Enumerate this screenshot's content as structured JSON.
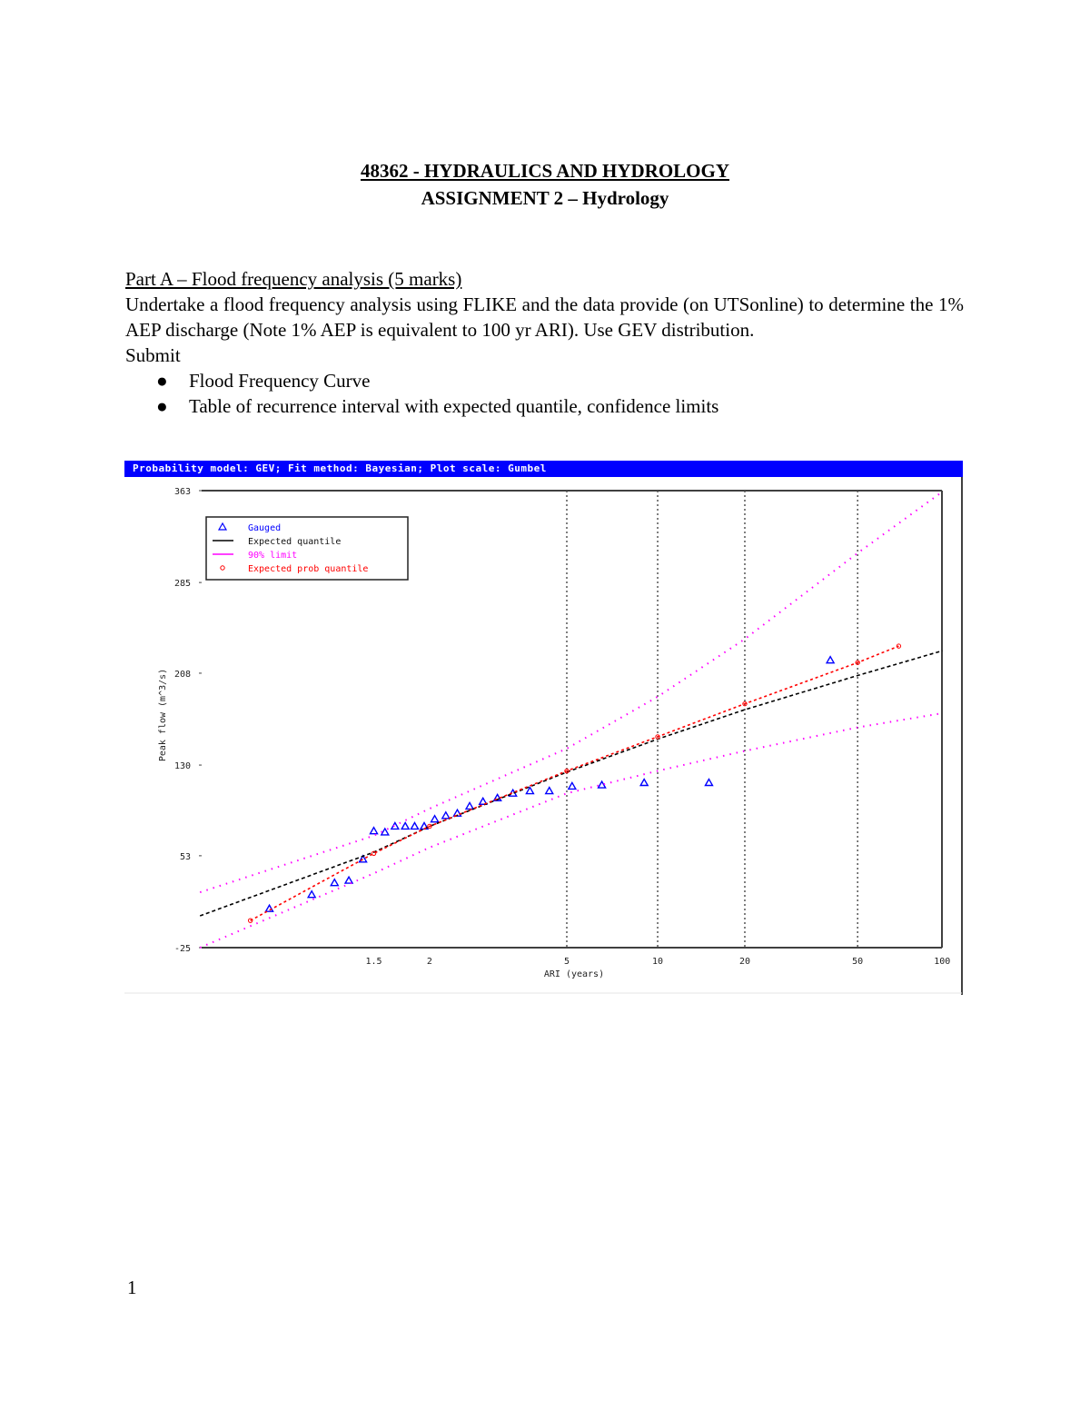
{
  "document": {
    "title": "48362 - HYDRAULICS AND HYDROLOGY",
    "subtitle": "ASSIGNMENT 2 – Hydrology",
    "part_heading": "Part A – Flood frequency analysis (5 marks)",
    "paragraph": "Undertake a flood frequency analysis using FLIKE and the data provide (on UTSonline) to determine the 1% AEP discharge (Note 1% AEP is equivalent to 100 yr ARI). Use GEV distribution.",
    "submit_label": "Submit",
    "bullets": [
      {
        "symbol": "●",
        "text": "Flood Frequency Curve"
      },
      {
        "symbol": "●",
        "text": "Table of recurrence interval with expected quantile, confidence limits"
      }
    ],
    "page_number": "1"
  },
  "chart_header": "Probability model: GEV; Fit method: Bayesian; Plot scale: Gumbel",
  "chart_data": {
    "type": "scatter",
    "title": "Probability model: GEV; Fit method: Bayesian; Plot scale: Gumbel",
    "xlabel": "ARI (years)",
    "ylabel": "Peak flow (m^3/s)",
    "x_scale": "gumbel",
    "x_ticks": [
      "1.5",
      "2",
      "5",
      "10",
      "20",
      "50",
      "100"
    ],
    "x_tick_values": [
      1.5,
      2,
      5,
      10,
      20,
      50,
      100
    ],
    "x_gridlines": [
      5,
      10,
      20,
      50
    ],
    "y_ticks": [
      "363",
      "285",
      "208",
      "130",
      "53",
      "-25"
    ],
    "y_tick_values": [
      363,
      285,
      208,
      130,
      53,
      -25
    ],
    "ylim": [
      -25,
      363
    ],
    "legend": [
      {
        "label": "Gauged",
        "marker": "triangle",
        "color": "#0000ff"
      },
      {
        "label": "Expected quantile",
        "marker": "line",
        "color": "#000000"
      },
      {
        "label": "90% limit",
        "marker": "line",
        "color": "#ff00ff"
      },
      {
        "label": "Expected prob quantile",
        "marker": "circle",
        "color": "#ff0000"
      }
    ],
    "legend_position": "upper-left",
    "series": [
      {
        "name": "Gauged",
        "type": "scatter",
        "color": "#0000ff",
        "points": [
          {
            "ari": 1.08,
            "q": 8
          },
          {
            "ari": 1.19,
            "q": 20
          },
          {
            "ari": 1.28,
            "q": 30
          },
          {
            "ari": 1.35,
            "q": 32
          },
          {
            "ari": 1.43,
            "q": 50
          },
          {
            "ari": 1.5,
            "q": 74
          },
          {
            "ari": 1.58,
            "q": 73
          },
          {
            "ari": 1.66,
            "q": 78
          },
          {
            "ari": 1.75,
            "q": 78
          },
          {
            "ari": 1.84,
            "q": 78
          },
          {
            "ari": 1.94,
            "q": 78
          },
          {
            "ari": 2.06,
            "q": 84
          },
          {
            "ari": 2.2,
            "q": 87
          },
          {
            "ari": 2.36,
            "q": 89
          },
          {
            "ari": 2.55,
            "q": 95
          },
          {
            "ari": 2.78,
            "q": 99
          },
          {
            "ari": 3.06,
            "q": 102
          },
          {
            "ari": 3.4,
            "q": 106
          },
          {
            "ari": 3.83,
            "q": 108
          },
          {
            "ari": 4.4,
            "q": 108
          },
          {
            "ari": 5.2,
            "q": 112
          },
          {
            "ari": 6.5,
            "q": 113
          },
          {
            "ari": 9.0,
            "q": 115
          },
          {
            "ari": 15.0,
            "q": 115
          },
          {
            "ari": 40.0,
            "q": 219
          }
        ]
      },
      {
        "name": "Expected quantile",
        "type": "line",
        "color": "#000000",
        "points": [
          {
            "ari": 1.01,
            "q": 2
          },
          {
            "ari": 1.5,
            "q": 56
          },
          {
            "ari": 2,
            "q": 78
          },
          {
            "ari": 5,
            "q": 124
          },
          {
            "ari": 10,
            "q": 152
          },
          {
            "ari": 20,
            "q": 177
          },
          {
            "ari": 50,
            "q": 206
          },
          {
            "ari": 100,
            "q": 227
          }
        ]
      },
      {
        "name": "90% limit upper",
        "type": "line",
        "color": "#ff00ff",
        "points": [
          {
            "ari": 1.01,
            "q": 22
          },
          {
            "ari": 1.5,
            "q": 70
          },
          {
            "ari": 2,
            "q": 93
          },
          {
            "ari": 5,
            "q": 144
          },
          {
            "ari": 10,
            "q": 188
          },
          {
            "ari": 20,
            "q": 237
          },
          {
            "ari": 50,
            "q": 310
          },
          {
            "ari": 100,
            "q": 362
          }
        ]
      },
      {
        "name": "90% limit lower",
        "type": "line",
        "color": "#ff00ff",
        "points": [
          {
            "ari": 1.01,
            "q": -25
          },
          {
            "ari": 1.5,
            "q": 38
          },
          {
            "ari": 2,
            "q": 60
          },
          {
            "ari": 5,
            "q": 106
          },
          {
            "ari": 10,
            "q": 125
          },
          {
            "ari": 20,
            "q": 142
          },
          {
            "ari": 50,
            "q": 162
          },
          {
            "ari": 100,
            "q": 174
          }
        ]
      },
      {
        "name": "Expected prob quantile",
        "type": "line",
        "color": "#ff0000",
        "points": [
          {
            "ari": 1.05,
            "q": -2
          },
          {
            "ari": 1.5,
            "q": 55
          },
          {
            "ari": 2,
            "q": 78
          },
          {
            "ari": 5,
            "q": 125
          },
          {
            "ari": 10,
            "q": 154
          },
          {
            "ari": 20,
            "q": 182
          },
          {
            "ari": 50,
            "q": 217
          },
          {
            "ari": 70,
            "q": 231
          }
        ]
      }
    ]
  }
}
